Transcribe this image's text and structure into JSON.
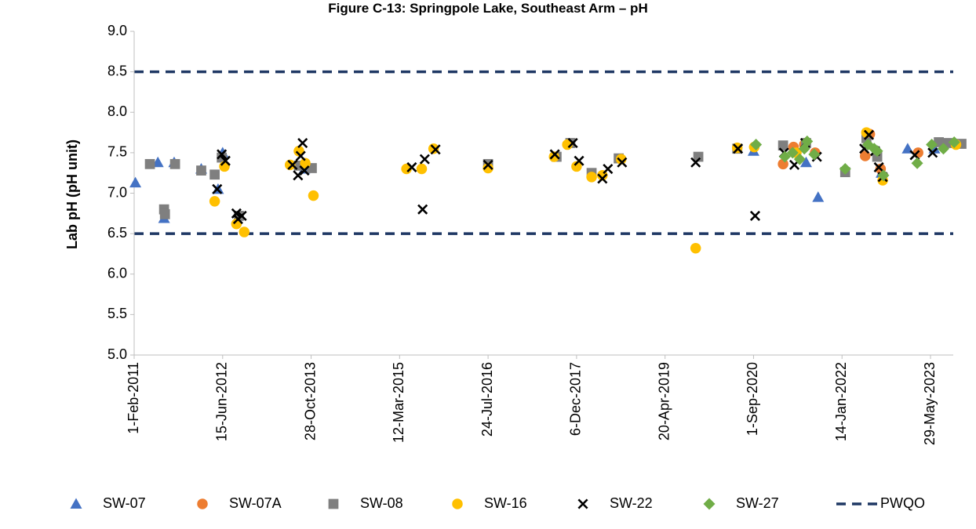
{
  "chart_data": {
    "type": "scatter",
    "title": "Figure C-13: Springpole Lake, Southeast Arm – pH",
    "xlabel": "",
    "ylabel": "Lab pH (pH unit)",
    "ylim": [
      5.0,
      9.0
    ],
    "yticks": [
      "5.0",
      "5.5",
      "6.0",
      "6.5",
      "7.0",
      "7.5",
      "8.0",
      "8.5",
      "9.0"
    ],
    "xlim": [
      "2011-02-01",
      "2024-01-01"
    ],
    "xticks": [
      {
        "date": "2011-02-01",
        "label": "1-Feb-2011"
      },
      {
        "date": "2012-06-15",
        "label": "15-Jun-2012"
      },
      {
        "date": "2013-10-28",
        "label": "28-Oct-2013"
      },
      {
        "date": "2015-03-12",
        "label": "12-Mar-2015"
      },
      {
        "date": "2016-07-24",
        "label": "24-Jul-2016"
      },
      {
        "date": "2017-12-06",
        "label": "6-Dec-2017"
      },
      {
        "date": "2019-04-20",
        "label": "20-Apr-2019"
      },
      {
        "date": "2020-09-01",
        "label": "1-Sep-2020"
      },
      {
        "date": "2022-01-14",
        "label": "14-Jan-2022"
      },
      {
        "date": "2023-05-29",
        "label": "29-May-2023"
      }
    ],
    "grid": false,
    "legend_position": "bottom",
    "guidelines": {
      "name": "PWQO",
      "values": [
        6.5,
        8.5
      ],
      "color": "#1f3864",
      "style": "dashed"
    },
    "series": [
      {
        "name": "SW-07",
        "marker": "triangle",
        "color": "#4472c4",
        "points": [
          [
            "2011-02-08",
            7.13
          ],
          [
            "2011-06-15",
            7.38
          ],
          [
            "2011-07-20",
            6.69
          ],
          [
            "2011-09-15",
            7.38
          ],
          [
            "2012-02-15",
            7.3
          ],
          [
            "2012-05-20",
            7.05
          ],
          [
            "2012-06-15",
            7.5
          ],
          [
            "2013-09-20",
            7.3
          ],
          [
            "2020-09-01",
            7.52
          ],
          [
            "2021-06-25",
            7.38
          ],
          [
            "2021-09-01",
            6.95
          ],
          [
            "2022-08-25",
            7.25
          ],
          [
            "2023-01-20",
            7.55
          ],
          [
            "2023-06-20",
            7.55
          ]
        ]
      },
      {
        "name": "SW-07A",
        "marker": "circle",
        "color": "#ed7d31",
        "points": [
          [
            "2021-02-15",
            7.36
          ],
          [
            "2021-04-15",
            7.57
          ],
          [
            "2021-06-15",
            7.6
          ],
          [
            "2021-08-15",
            7.5
          ],
          [
            "2022-05-25",
            7.46
          ],
          [
            "2022-06-20",
            7.73
          ],
          [
            "2022-08-20",
            7.3
          ],
          [
            "2023-03-20",
            7.5
          ]
        ]
      },
      {
        "name": "SW-08",
        "marker": "square",
        "color": "#7f7f7f",
        "points": [
          [
            "2011-05-01",
            7.36
          ],
          [
            "2011-07-20",
            6.8
          ],
          [
            "2011-07-25",
            6.74
          ],
          [
            "2011-09-20",
            7.36
          ],
          [
            "2012-02-15",
            7.28
          ],
          [
            "2012-05-01",
            7.23
          ],
          [
            "2012-06-10",
            7.44
          ],
          [
            "2012-09-15",
            6.72
          ],
          [
            "2013-08-20",
            7.34
          ],
          [
            "2013-11-01",
            7.31
          ],
          [
            "2016-07-24",
            7.36
          ],
          [
            "2017-08-15",
            7.45
          ],
          [
            "2017-11-01",
            7.62
          ],
          [
            "2018-03-01",
            7.25
          ],
          [
            "2018-08-01",
            7.43
          ],
          [
            "2019-10-25",
            7.45
          ],
          [
            "2020-06-01",
            7.55
          ],
          [
            "2021-02-15",
            7.59
          ],
          [
            "2021-06-25",
            7.62
          ],
          [
            "2022-02-01",
            7.26
          ],
          [
            "2022-06-01",
            7.68
          ],
          [
            "2022-08-01",
            7.45
          ],
          [
            "2023-07-15",
            7.63
          ],
          [
            "2023-09-01",
            7.62
          ],
          [
            "2023-11-20",
            7.61
          ]
        ]
      },
      {
        "name": "SW-16",
        "marker": "circle",
        "color": "#ffc000",
        "points": [
          [
            "2012-05-01",
            6.9
          ],
          [
            "2012-06-25",
            7.33
          ],
          [
            "2012-09-01",
            6.62
          ],
          [
            "2012-10-15",
            6.52
          ],
          [
            "2013-07-01",
            7.35
          ],
          [
            "2013-08-20",
            7.52
          ],
          [
            "2013-09-25",
            7.37
          ],
          [
            "2013-11-10",
            6.97
          ],
          [
            "2015-04-20",
            7.3
          ],
          [
            "2015-07-15",
            7.3
          ],
          [
            "2015-09-20",
            7.55
          ],
          [
            "2016-07-24",
            7.31
          ],
          [
            "2017-08-01",
            7.45
          ],
          [
            "2017-10-15",
            7.6
          ],
          [
            "2017-12-06",
            7.33
          ],
          [
            "2018-03-01",
            7.2
          ],
          [
            "2018-05-01",
            7.22
          ],
          [
            "2018-08-15",
            7.42
          ],
          [
            "2019-10-10",
            6.32
          ],
          [
            "2020-06-01",
            7.56
          ],
          [
            "2020-09-05",
            7.57
          ],
          [
            "2021-05-01",
            7.5
          ],
          [
            "2022-06-01",
            7.75
          ],
          [
            "2022-09-01",
            7.16
          ],
          [
            "2023-10-20",
            7.6
          ]
        ]
      },
      {
        "name": "SW-22",
        "marker": "x",
        "color": "#000000",
        "points": [
          [
            "2012-05-15",
            7.05
          ],
          [
            "2012-06-10",
            7.48
          ],
          [
            "2012-07-01",
            7.4
          ],
          [
            "2012-09-01",
            6.75
          ],
          [
            "2012-09-10",
            6.68
          ],
          [
            "2012-10-01",
            6.72
          ],
          [
            "2013-07-15",
            7.35
          ],
          [
            "2013-08-15",
            7.22
          ],
          [
            "2013-08-30",
            7.46
          ],
          [
            "2013-09-10",
            7.62
          ],
          [
            "2013-09-20",
            7.28
          ],
          [
            "2015-05-20",
            7.32
          ],
          [
            "2015-07-20",
            6.8
          ],
          [
            "2015-08-01",
            7.42
          ],
          [
            "2015-10-01",
            7.54
          ],
          [
            "2016-07-24",
            7.35
          ],
          [
            "2017-08-05",
            7.48
          ],
          [
            "2017-11-15",
            7.62
          ],
          [
            "2017-12-20",
            7.4
          ],
          [
            "2018-05-01",
            7.18
          ],
          [
            "2018-06-01",
            7.3
          ],
          [
            "2018-08-20",
            7.38
          ],
          [
            "2019-10-10",
            7.38
          ],
          [
            "2020-06-05",
            7.55
          ],
          [
            "2020-09-10",
            6.72
          ],
          [
            "2021-02-20",
            7.5
          ],
          [
            "2021-04-20",
            7.35
          ],
          [
            "2021-06-20",
            7.62
          ],
          [
            "2021-08-25",
            7.45
          ],
          [
            "2022-05-20",
            7.55
          ],
          [
            "2022-06-15",
            7.72
          ],
          [
            "2022-07-20",
            7.52
          ],
          [
            "2022-08-10",
            7.32
          ],
          [
            "2022-09-01",
            7.2
          ],
          [
            "2023-03-01",
            7.47
          ],
          [
            "2023-06-10",
            7.5
          ]
        ]
      },
      {
        "name": "SW-27",
        "marker": "diamond",
        "color": "#70ad47",
        "points": [
          [
            "2020-09-15",
            7.6
          ],
          [
            "2021-02-25",
            7.45
          ],
          [
            "2021-04-10",
            7.5
          ],
          [
            "2021-05-20",
            7.42
          ],
          [
            "2021-06-15",
            7.55
          ],
          [
            "2021-07-01",
            7.64
          ],
          [
            "2021-08-10",
            7.48
          ],
          [
            "2022-02-01",
            7.3
          ],
          [
            "2022-06-10",
            7.6
          ],
          [
            "2022-07-15",
            7.55
          ],
          [
            "2022-08-01",
            7.52
          ],
          [
            "2022-09-05",
            7.22
          ],
          [
            "2023-03-15",
            7.37
          ],
          [
            "2023-06-05",
            7.6
          ],
          [
            "2023-08-10",
            7.55
          ],
          [
            "2023-10-10",
            7.63
          ]
        ]
      }
    ]
  }
}
